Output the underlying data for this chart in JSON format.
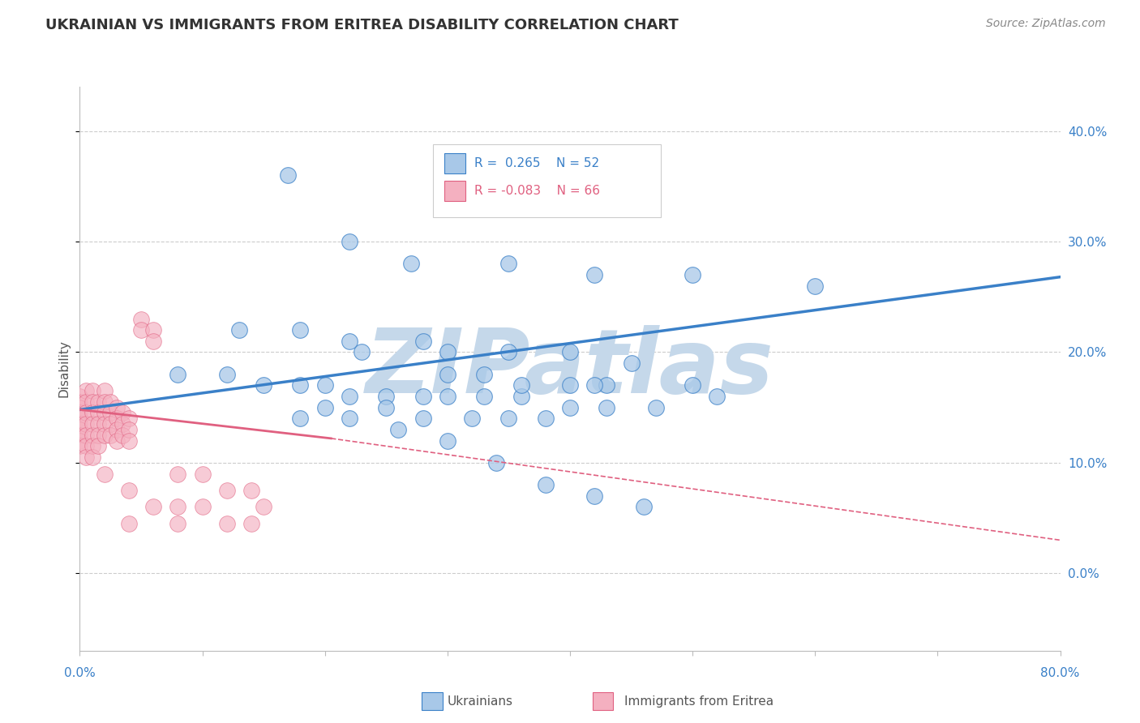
{
  "title": "UKRAINIAN VS IMMIGRANTS FROM ERITREA DISABILITY CORRELATION CHART",
  "source": "Source: ZipAtlas.com",
  "ylabel": "Disability",
  "color_ukrainian": "#a8c8e8",
  "color_eritrea": "#f4b0c0",
  "color_ukrainian_line": "#3a80c8",
  "color_eritrea_line": "#e06080",
  "watermark": "ZIPatlas",
  "watermark_color": "#c5d8ea",
  "xmin": 0.0,
  "xmax": 0.8,
  "ymin": -0.07,
  "ymax": 0.44,
  "ytick_vals": [
    0.0,
    0.1,
    0.2,
    0.3,
    0.4
  ],
  "ytick_labels": [
    "0.0%",
    "10.0%",
    "20.0%",
    "30.0%",
    "40.0%"
  ],
  "blue_line": {
    "x0": 0.0,
    "x1": 0.8,
    "y0": 0.148,
    "y1": 0.268
  },
  "pink_line_solid": {
    "x0": 0.0,
    "x1": 0.205,
    "y0": 0.148,
    "y1": 0.122
  },
  "pink_line_dash": {
    "x0": 0.205,
    "x1": 0.8,
    "y0": 0.122,
    "y1": 0.03
  },
  "ukrainians_x": [
    0.17,
    0.22,
    0.27,
    0.35,
    0.42,
    0.5,
    0.6,
    0.13,
    0.18,
    0.22,
    0.23,
    0.28,
    0.3,
    0.35,
    0.4,
    0.45,
    0.5,
    0.08,
    0.12,
    0.15,
    0.18,
    0.2,
    0.22,
    0.25,
    0.28,
    0.3,
    0.33,
    0.36,
    0.4,
    0.43,
    0.47,
    0.52,
    0.3,
    0.33,
    0.36,
    0.4,
    0.43,
    0.2,
    0.25,
    0.28,
    0.32,
    0.35,
    0.38,
    0.42,
    0.18,
    0.22,
    0.26,
    0.3,
    0.34,
    0.38,
    0.42,
    0.46
  ],
  "ukrainians_y": [
    0.36,
    0.3,
    0.28,
    0.28,
    0.27,
    0.27,
    0.26,
    0.22,
    0.22,
    0.21,
    0.2,
    0.21,
    0.2,
    0.2,
    0.2,
    0.19,
    0.17,
    0.18,
    0.18,
    0.17,
    0.17,
    0.17,
    0.16,
    0.16,
    0.16,
    0.16,
    0.16,
    0.16,
    0.15,
    0.15,
    0.15,
    0.16,
    0.18,
    0.18,
    0.17,
    0.17,
    0.17,
    0.15,
    0.15,
    0.14,
    0.14,
    0.14,
    0.14,
    0.17,
    0.14,
    0.14,
    0.13,
    0.12,
    0.1,
    0.08,
    0.07,
    0.06
  ],
  "eritrea_x": [
    0.0,
    0.0,
    0.0,
    0.0,
    0.0,
    0.0,
    0.0,
    0.0,
    0.0,
    0.0,
    0.005,
    0.005,
    0.005,
    0.005,
    0.005,
    0.005,
    0.005,
    0.01,
    0.01,
    0.01,
    0.01,
    0.01,
    0.01,
    0.01,
    0.015,
    0.015,
    0.015,
    0.015,
    0.015,
    0.02,
    0.02,
    0.02,
    0.02,
    0.02,
    0.025,
    0.025,
    0.025,
    0.025,
    0.03,
    0.03,
    0.03,
    0.03,
    0.035,
    0.035,
    0.035,
    0.04,
    0.04,
    0.04,
    0.05,
    0.05,
    0.06,
    0.06,
    0.08,
    0.1,
    0.12,
    0.14,
    0.02,
    0.04,
    0.06,
    0.08,
    0.04,
    0.08,
    0.1,
    0.12,
    0.14,
    0.15
  ],
  "eritrea_y": [
    0.16,
    0.155,
    0.15,
    0.145,
    0.14,
    0.135,
    0.13,
    0.125,
    0.12,
    0.115,
    0.165,
    0.155,
    0.145,
    0.135,
    0.125,
    0.115,
    0.105,
    0.165,
    0.155,
    0.145,
    0.135,
    0.125,
    0.115,
    0.105,
    0.155,
    0.145,
    0.135,
    0.125,
    0.115,
    0.165,
    0.155,
    0.145,
    0.135,
    0.125,
    0.155,
    0.145,
    0.135,
    0.125,
    0.15,
    0.14,
    0.13,
    0.12,
    0.145,
    0.135,
    0.125,
    0.14,
    0.13,
    0.12,
    0.23,
    0.22,
    0.22,
    0.21,
    0.09,
    0.09,
    0.075,
    0.075,
    0.09,
    0.075,
    0.06,
    0.06,
    0.045,
    0.045,
    0.06,
    0.045,
    0.045,
    0.06
  ]
}
